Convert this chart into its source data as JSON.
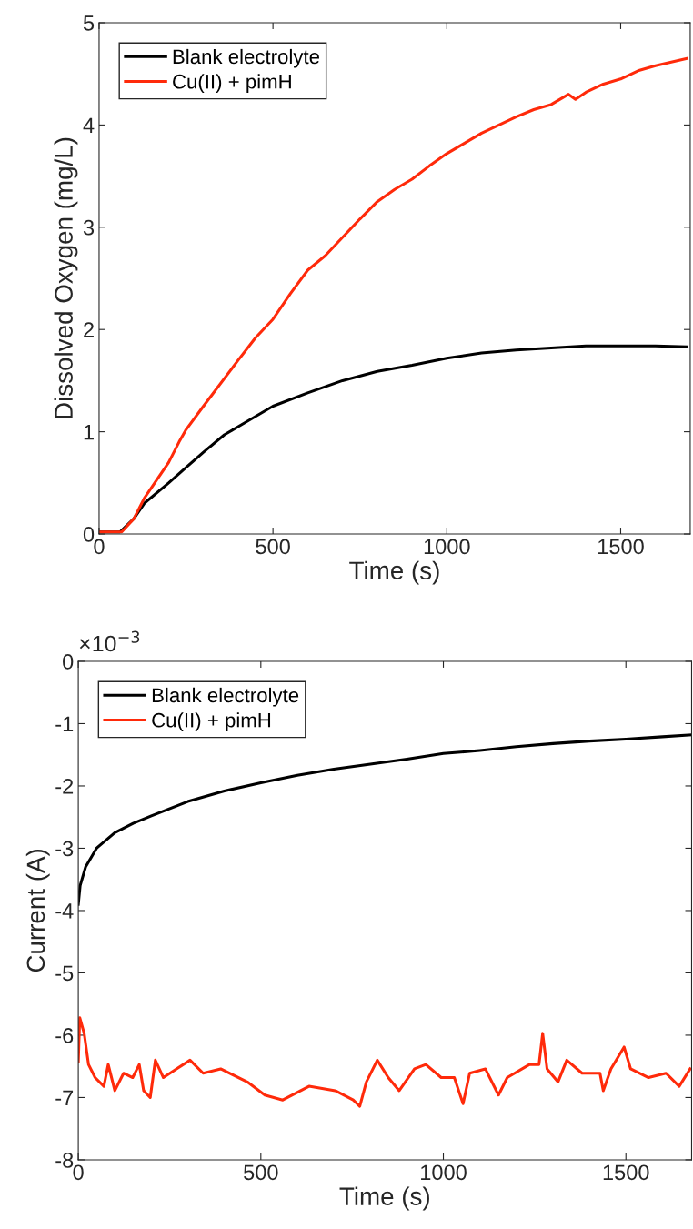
{
  "chart_data": [
    {
      "type": "line",
      "xlabel": "Time (s)",
      "ylabel": "Dissolved Oxygen (mg/L)",
      "xlim": [
        0,
        1700
      ],
      "xticks": [
        0,
        500,
        1000,
        1500
      ],
      "ylim": [
        0,
        5
      ],
      "yticks": [
        0,
        1,
        2,
        3,
        4,
        5
      ],
      "grid": false,
      "legend": "top left",
      "line_style": "solid",
      "marker": "none",
      "series": [
        {
          "name": "Blank electrolyte",
          "color": "#000000",
          "x": [
            0,
            60,
            100,
            130,
            200,
            250,
            300,
            360,
            400,
            500,
            600,
            700,
            800,
            900,
            1000,
            1100,
            1200,
            1300,
            1400,
            1500,
            1600,
            1690
          ],
          "values": [
            0.02,
            0.02,
            0.15,
            0.3,
            0.5,
            0.65,
            0.8,
            0.97,
            1.05,
            1.25,
            1.38,
            1.5,
            1.59,
            1.65,
            1.72,
            1.77,
            1.8,
            1.82,
            1.84,
            1.84,
            1.84,
            1.83
          ]
        },
        {
          "name": "Cu(II) + pimH",
          "color": "#ff2a0a",
          "x": [
            0,
            65,
            100,
            130,
            200,
            230,
            250,
            300,
            400,
            450,
            500,
            550,
            600,
            650,
            700,
            750,
            800,
            850,
            900,
            950,
            1000,
            1050,
            1100,
            1150,
            1200,
            1250,
            1300,
            1350,
            1370,
            1400,
            1450,
            1500,
            1550,
            1600,
            1690
          ],
          "values": [
            0.02,
            0.02,
            0.15,
            0.35,
            0.7,
            0.9,
            1.02,
            1.25,
            1.7,
            1.92,
            2.1,
            2.35,
            2.58,
            2.72,
            2.9,
            3.08,
            3.25,
            3.37,
            3.47,
            3.6,
            3.72,
            3.82,
            3.92,
            4.0,
            4.08,
            4.15,
            4.2,
            4.3,
            4.25,
            4.32,
            4.4,
            4.45,
            4.53,
            4.58,
            4.65
          ]
        }
      ]
    },
    {
      "type": "line",
      "xlabel": "Time (s)",
      "ylabel": "Current (A)",
      "annotations": [
        "×10$^{−3}$"
      ],
      "xlim": [
        0,
        1680
      ],
      "xticks": [
        0,
        500,
        1000,
        1500
      ],
      "ylim": [
        -8,
        0
      ],
      "yticks": [
        -8,
        -7,
        -6,
        -5,
        -4,
        -3,
        -2,
        -1,
        0
      ],
      "grid": false,
      "legend": "top left",
      "line_style": "solid",
      "marker": "none",
      "series": [
        {
          "name": "Blank electrolyte",
          "color": "#000000",
          "x": [
            0,
            5,
            20,
            50,
            100,
            150,
            200,
            300,
            400,
            500,
            600,
            700,
            800,
            900,
            1000,
            1100,
            1200,
            1300,
            1400,
            1500,
            1600,
            1680
          ],
          "values": [
            -3.9,
            -3.6,
            -3.3,
            -3.0,
            -2.75,
            -2.6,
            -2.48,
            -2.25,
            -2.08,
            -1.95,
            -1.83,
            -1.73,
            -1.65,
            -1.57,
            -1.48,
            -1.43,
            -1.37,
            -1.32,
            -1.28,
            -1.25,
            -1.21,
            -1.18
          ]
        },
        {
          "name": "Cu(II) + pimH",
          "color": "#ff2a0a",
          "x": [
            0,
            4,
            16,
            28,
            46,
            70,
            82,
            100,
            124,
            149,
            167,
            179,
            197,
            211,
            233,
            269,
            306,
            342,
            390,
            463,
            511,
            560,
            632,
            704,
            753,
            771,
            789,
            819,
            849,
            879,
            921,
            952,
            994,
            1030,
            1054,
            1072,
            1115,
            1151,
            1175,
            1236,
            1262,
            1272,
            1284,
            1314,
            1338,
            1380,
            1429,
            1438,
            1459,
            1495,
            1513,
            1562,
            1610,
            1646,
            1676
          ],
          "values": [
            -6.43,
            -5.72,
            -5.97,
            -6.47,
            -6.68,
            -6.82,
            -6.47,
            -6.89,
            -6.61,
            -6.68,
            -6.47,
            -6.89,
            -7.0,
            -6.4,
            -6.68,
            -6.54,
            -6.4,
            -6.61,
            -6.54,
            -6.75,
            -6.96,
            -7.04,
            -6.82,
            -6.89,
            -7.04,
            -7.14,
            -6.75,
            -6.4,
            -6.68,
            -6.89,
            -6.54,
            -6.47,
            -6.68,
            -6.68,
            -7.1,
            -6.61,
            -6.54,
            -6.96,
            -6.68,
            -6.47,
            -6.47,
            -5.97,
            -6.54,
            -6.75,
            -6.4,
            -6.61,
            -6.61,
            -6.89,
            -6.54,
            -6.19,
            -6.54,
            -6.68,
            -6.61,
            -6.82,
            -6.54
          ]
        }
      ]
    }
  ]
}
